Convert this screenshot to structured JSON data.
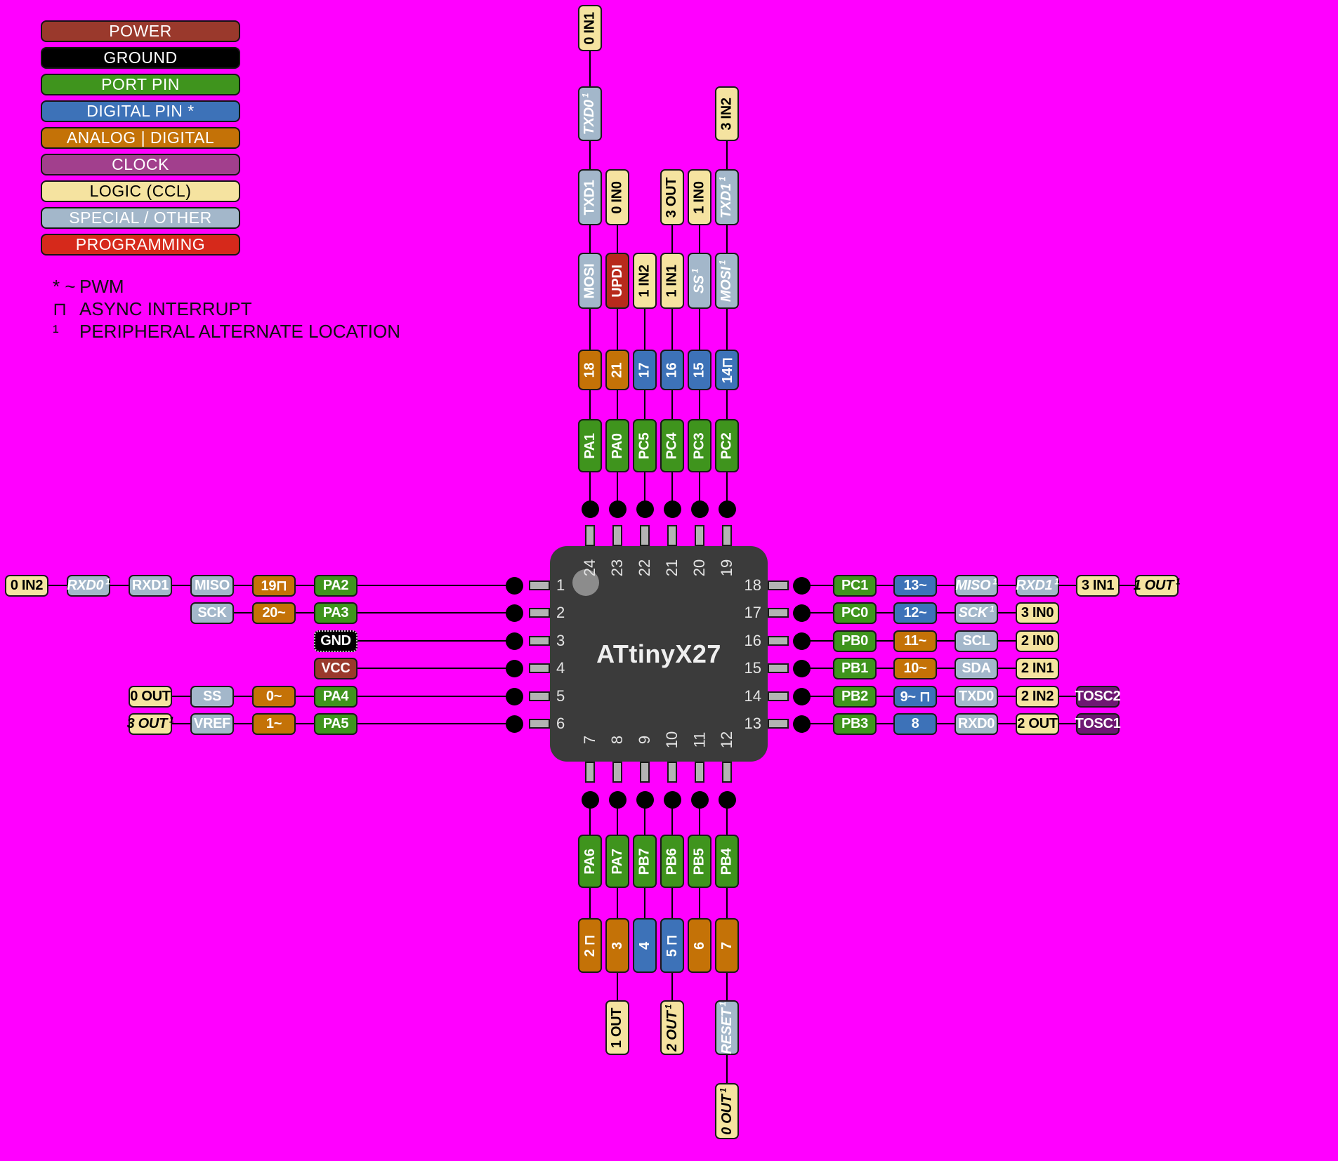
{
  "background": "#ff00ff",
  "legend": {
    "items": [
      {
        "label": "POWER",
        "color": "#9a392c",
        "text_color": "#ffffff"
      },
      {
        "label": "GROUND",
        "color": "#000000",
        "text_color": "#ffffff"
      },
      {
        "label": "PORT PIN",
        "color": "#3f941d",
        "text_color": "#ffffff"
      },
      {
        "label": "DIGITAL PIN *",
        "color": "#3d72b8",
        "text_color": "#ffffff"
      },
      {
        "label": "ANALOG | DIGITAL",
        "color": "#c47207",
        "text_color": "#ffffff"
      },
      {
        "label": "CLOCK",
        "color": "#a23f8d",
        "text_color": "#ffffff"
      },
      {
        "label": "LOGIC (CCL)",
        "color": "#f5e3a0",
        "text_color": "#000000"
      },
      {
        "label": "SPECIAL / OTHER",
        "color": "#a3b7ca",
        "text_color": "#ffffff"
      },
      {
        "label": "PROGRAMMING",
        "color": "#d6291b",
        "text_color": "#ffffff"
      }
    ]
  },
  "notes": [
    {
      "prefix": "* ~",
      "text": "PWM"
    },
    {
      "prefix": "⊓",
      "text": "ASYNC INTERRUPT"
    },
    {
      "prefix": "¹",
      "text": "PERIPHERAL ALTERNATE LOCATION"
    }
  ],
  "chip": {
    "name": "ATtinyX27"
  },
  "type_colors": {
    "port": {
      "bg": "#3f941d",
      "fg": "#ffffff"
    },
    "digital": {
      "bg": "#3d72b8",
      "fg": "#ffffff"
    },
    "analog": {
      "bg": "#c47207",
      "fg": "#ffffff"
    },
    "power": {
      "bg": "#9a392c",
      "fg": "#ffffff"
    },
    "ground": {
      "bg": "#000000",
      "fg": "#ffffff"
    },
    "clock": {
      "bg": "#6e1873",
      "fg": "#ffffff"
    },
    "logic": {
      "bg": "#f5e3a0",
      "fg": "#000000"
    },
    "special": {
      "bg": "#a3b7ca",
      "fg": "#ffffff"
    },
    "programming": {
      "bg": "#b82a1c",
      "fg": "#ffffff"
    }
  },
  "pins": {
    "left": [
      {
        "number": "1",
        "labels": [
          {
            "text": "PA2",
            "type": "port"
          },
          {
            "text": "19⊓",
            "type": "analog"
          },
          {
            "text": "MISO",
            "type": "special"
          },
          {
            "text": "RXD1",
            "type": "special"
          },
          {
            "text": "RXD0",
            "type": "special",
            "italic": true,
            "sup": "1"
          },
          {
            "text": "0 IN2",
            "type": "logic"
          }
        ]
      },
      {
        "number": "2",
        "labels": [
          {
            "text": "PA3",
            "type": "port"
          },
          {
            "text": "20~",
            "type": "analog"
          },
          {
            "text": "SCK",
            "type": "special"
          }
        ]
      },
      {
        "number": "3",
        "labels": [
          {
            "text": "GND",
            "type": "ground"
          }
        ]
      },
      {
        "number": "4",
        "labels": [
          {
            "text": "VCC",
            "type": "power"
          }
        ]
      },
      {
        "number": "5",
        "labels": [
          {
            "text": "PA4",
            "type": "port"
          },
          {
            "text": "0~",
            "type": "analog"
          },
          {
            "text": "SS",
            "type": "special"
          },
          {
            "text": "0 OUT",
            "type": "logic"
          }
        ]
      },
      {
        "number": "6",
        "labels": [
          {
            "text": "PA5",
            "type": "port"
          },
          {
            "text": "1~",
            "type": "analog"
          },
          {
            "text": "VREF",
            "type": "special"
          },
          {
            "text": "3 OUT",
            "type": "logic",
            "italic": true,
            "sup": "1"
          }
        ]
      }
    ],
    "right": [
      {
        "number": "18",
        "labels": [
          {
            "text": "PC1",
            "type": "port"
          },
          {
            "text": "13~",
            "type": "digital"
          },
          {
            "text": "MISO",
            "type": "special",
            "italic": true,
            "sup": "1"
          },
          {
            "text": "RXD1",
            "type": "special",
            "italic": true,
            "sup": "1"
          },
          {
            "text": "3 IN1",
            "type": "logic"
          },
          {
            "text": "1 OUT",
            "type": "logic",
            "italic": true,
            "sup": "1"
          }
        ]
      },
      {
        "number": "17",
        "labels": [
          {
            "text": "PC0",
            "type": "port"
          },
          {
            "text": "12~",
            "type": "digital"
          },
          {
            "text": "SCK",
            "type": "special",
            "italic": true,
            "sup": "1"
          },
          {
            "text": "3 IN0",
            "type": "logic"
          }
        ]
      },
      {
        "number": "16",
        "labels": [
          {
            "text": "PB0",
            "type": "port"
          },
          {
            "text": "11~",
            "type": "analog"
          },
          {
            "text": "SCL",
            "type": "special"
          },
          {
            "text": "2 IN0",
            "type": "logic"
          }
        ]
      },
      {
        "number": "15",
        "labels": [
          {
            "text": "PB1",
            "type": "port"
          },
          {
            "text": "10~",
            "type": "analog"
          },
          {
            "text": "SDA",
            "type": "special"
          },
          {
            "text": "2 IN1",
            "type": "logic"
          }
        ]
      },
      {
        "number": "14",
        "labels": [
          {
            "text": "PB2",
            "type": "port"
          },
          {
            "text": "9~ ⊓",
            "type": "digital"
          },
          {
            "text": "TXD0",
            "type": "special"
          },
          {
            "text": "2 IN2",
            "type": "logic"
          },
          {
            "text": "TOSC2",
            "type": "clock"
          }
        ]
      },
      {
        "number": "13",
        "labels": [
          {
            "text": "PB3",
            "type": "port"
          },
          {
            "text": "8",
            "type": "digital"
          },
          {
            "text": "RXD0",
            "type": "special"
          },
          {
            "text": "2 OUT",
            "type": "logic"
          },
          {
            "text": "TOSC1",
            "type": "clock"
          }
        ]
      }
    ],
    "top": [
      {
        "number": "24",
        "labels": [
          {
            "text": "PA1",
            "type": "port"
          },
          {
            "text": "18",
            "type": "analog"
          },
          {
            "text": "MOSI",
            "type": "special"
          },
          {
            "text": "TXD1",
            "type": "special"
          },
          {
            "text": "TXD0",
            "type": "special",
            "italic": true,
            "sup": "1"
          },
          {
            "text": "0 IN1",
            "type": "logic"
          }
        ]
      },
      {
        "number": "23",
        "labels": [
          {
            "text": "PA0",
            "type": "port"
          },
          {
            "text": "21",
            "type": "analog"
          },
          {
            "text": "UPDI",
            "type": "programming"
          },
          {
            "text": "0 IN0",
            "type": "logic"
          }
        ]
      },
      {
        "number": "22",
        "labels": [
          {
            "text": "PC5",
            "type": "port"
          },
          {
            "text": "17",
            "type": "digital"
          },
          {
            "text": "1 IN2",
            "type": "logic"
          }
        ]
      },
      {
        "number": "21",
        "labels": [
          {
            "text": "PC4",
            "type": "port"
          },
          {
            "text": "16",
            "type": "digital"
          },
          {
            "text": "1 IN1",
            "type": "logic"
          },
          {
            "text": "3 OUT",
            "type": "logic"
          }
        ]
      },
      {
        "number": "20",
        "labels": [
          {
            "text": "PC3",
            "type": "port"
          },
          {
            "text": "15",
            "type": "digital"
          },
          {
            "text": "SS",
            "type": "special",
            "italic": true,
            "sup": "1"
          },
          {
            "text": "1 IN0",
            "type": "logic"
          }
        ]
      },
      {
        "number": "19",
        "labels": [
          {
            "text": "PC2",
            "type": "port"
          },
          {
            "text": "14⊓",
            "type": "digital"
          },
          {
            "text": "MOSI",
            "type": "special",
            "italic": true,
            "sup": "1"
          },
          {
            "text": "TXD1",
            "type": "special",
            "italic": true,
            "sup": "1"
          },
          {
            "text": "3 IN2",
            "type": "logic"
          }
        ]
      }
    ],
    "bottom": [
      {
        "number": "7",
        "labels": [
          {
            "text": "PA6",
            "type": "port"
          },
          {
            "text": "2 ⊓",
            "type": "analog"
          }
        ]
      },
      {
        "number": "8",
        "labels": [
          {
            "text": "PA7",
            "type": "port"
          },
          {
            "text": "3",
            "type": "analog"
          },
          {
            "text": "1 OUT",
            "type": "logic"
          }
        ]
      },
      {
        "number": "9",
        "labels": [
          {
            "text": "PB7",
            "type": "port"
          },
          {
            "text": "4",
            "type": "digital"
          }
        ]
      },
      {
        "number": "10",
        "labels": [
          {
            "text": "PB6",
            "type": "port"
          },
          {
            "text": "5 ⊓",
            "type": "digital"
          },
          {
            "text": "2 OUT",
            "type": "logic",
            "italic": true,
            "sup": "1"
          }
        ]
      },
      {
        "number": "11",
        "labels": [
          {
            "text": "PB5",
            "type": "port"
          },
          {
            "text": "6",
            "type": "analog"
          }
        ]
      },
      {
        "number": "12",
        "labels": [
          {
            "text": "PB4",
            "type": "port"
          },
          {
            "text": "7",
            "type": "analog"
          },
          {
            "text": "RESET",
            "type": "special",
            "italic": true,
            "sup": "1"
          },
          {
            "text": "0 OUT",
            "type": "logic",
            "italic": true,
            "sup": "1"
          }
        ]
      }
    ]
  }
}
